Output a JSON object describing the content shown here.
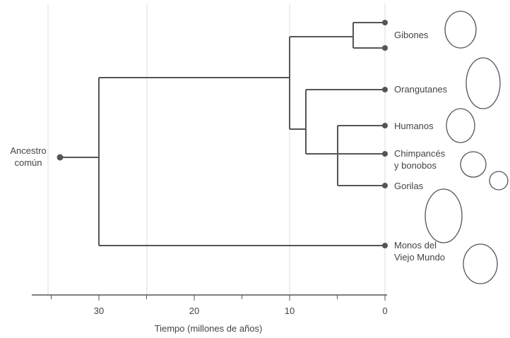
{
  "root": {
    "label": [
      "Ancestro",
      "común"
    ]
  },
  "leaves": [
    {
      "label": [
        "Gibones"
      ]
    },
    {
      "label": [
        "Orangutanes"
      ]
    },
    {
      "label": [
        "Humanos"
      ]
    },
    {
      "label": [
        "Chimpancés",
        "y bonobos"
      ]
    },
    {
      "label": [
        "Gorilas"
      ]
    },
    {
      "label": [
        "Monos del",
        "Viejo Mundo"
      ]
    }
  ],
  "axis": {
    "label": "Tiempo (millones de años)",
    "ticks": [
      30,
      20,
      10,
      0
    ]
  }
}
